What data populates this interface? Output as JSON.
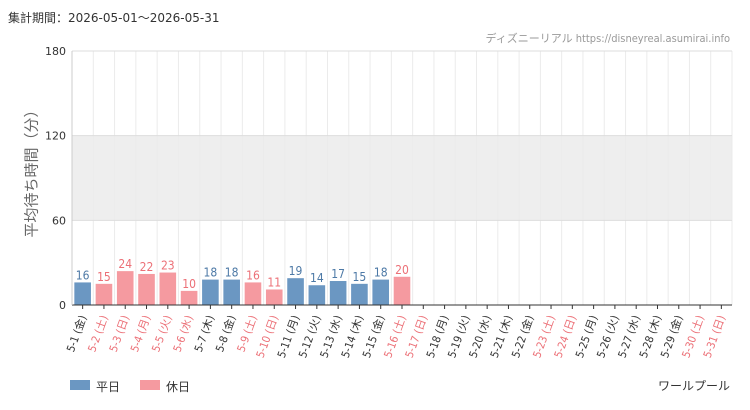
{
  "header": {
    "period": "集計期間：2026-05-01〜2026-05-31",
    "credit": "ディズニーリアル https://disneyreal.asumirai.info"
  },
  "attraction": "ワールプール",
  "legend": {
    "weekday": "平日",
    "holiday": "休日"
  },
  "colors": {
    "weekday_bar": "#6b97c2",
    "holiday_bar": "#f59aa0",
    "weekday_text": "#4d79a6",
    "holiday_text": "#ec7077",
    "band": "#eeeeee"
  },
  "chart_data": {
    "type": "bar",
    "ylabel": "平均待ち時間（分）",
    "ylim": [
      0,
      180
    ],
    "yticks": [
      0,
      60,
      120,
      180
    ],
    "grid": true,
    "legend_position": "bottom-left",
    "categories": [
      "5-1 (金)",
      "5-2 (土)",
      "5-3 (日)",
      "5-4 (月)",
      "5-5 (火)",
      "5-6 (水)",
      "5-7 (木)",
      "5-8 (金)",
      "5-9 (土)",
      "5-10 (日)",
      "5-11 (月)",
      "5-12 (火)",
      "5-13 (水)",
      "5-14 (木)",
      "5-15 (金)",
      "5-16 (土)",
      "5-17 (日)",
      "5-18 (月)",
      "5-19 (火)",
      "5-20 (水)",
      "5-21 (木)",
      "5-22 (金)",
      "5-23 (土)",
      "5-24 (日)",
      "5-25 (月)",
      "5-26 (火)",
      "5-27 (水)",
      "5-28 (木)",
      "5-29 (金)",
      "5-30 (土)",
      "5-31 (日)"
    ],
    "values": [
      16,
      15,
      24,
      22,
      23,
      10,
      18,
      18,
      16,
      11,
      19,
      14,
      17,
      15,
      18,
      20,
      null,
      null,
      null,
      null,
      null,
      null,
      null,
      null,
      null,
      null,
      null,
      null,
      null,
      null,
      null
    ],
    "day_type": [
      "weekday",
      "holiday",
      "holiday",
      "holiday",
      "holiday",
      "holiday",
      "weekday",
      "weekday",
      "holiday",
      "holiday",
      "weekday",
      "weekday",
      "weekday",
      "weekday",
      "weekday",
      "holiday",
      "holiday",
      "weekday",
      "weekday",
      "weekday",
      "weekday",
      "weekday",
      "holiday",
      "holiday",
      "weekday",
      "weekday",
      "weekday",
      "weekday",
      "weekday",
      "holiday",
      "holiday"
    ]
  }
}
